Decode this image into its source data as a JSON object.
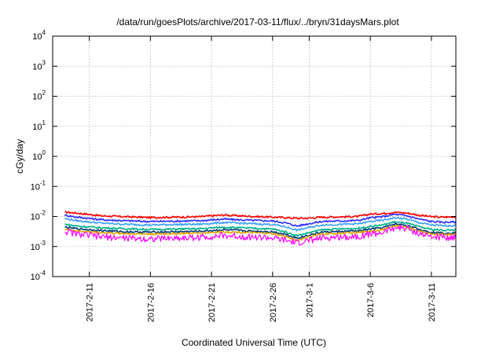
{
  "chart_data": {
    "type": "line",
    "title": "/data/run/goesPlots/archive/2017-03-11/flux/../bryn/31daysMars.plot",
    "xlabel": "Coordinated Universal Time (UTC)",
    "ylabel": "cGy/day",
    "yscale": "log",
    "ylim": [
      0.0001,
      10000
    ],
    "xlim_days": [
      "2017-2-08",
      "2017-3-13"
    ],
    "y_ticks": [
      {
        "base": "10",
        "exp": "-4",
        "value": 0.0001
      },
      {
        "base": "10",
        "exp": "-3",
        "value": 0.001
      },
      {
        "base": "10",
        "exp": "-2",
        "value": 0.01
      },
      {
        "base": "10",
        "exp": "-1",
        "value": 0.1
      },
      {
        "base": "10",
        "exp": "0",
        "value": 1
      },
      {
        "base": "10",
        "exp": "1",
        "value": 10
      },
      {
        "base": "10",
        "exp": "2",
        "value": 100
      },
      {
        "base": "10",
        "exp": "3",
        "value": 1000
      },
      {
        "base": "10",
        "exp": "4",
        "value": 10000
      }
    ],
    "x_ticks": [
      "2017-2-11",
      "2017-2-16",
      "2017-2-21",
      "2017-2-26",
      "2017-3-1",
      "2017-3-6",
      "2017-3-11"
    ],
    "grid": true,
    "legend": "none",
    "x": [
      "2017-2-09",
      "2017-2-10",
      "2017-2-12",
      "2017-2-14",
      "2017-2-16",
      "2017-2-18",
      "2017-2-20",
      "2017-2-22",
      "2017-2-24",
      "2017-2-26",
      "2017-2-27",
      "2017-2-28",
      "2017-3-1",
      "2017-3-2",
      "2017-3-4",
      "2017-3-5",
      "2017-3-6",
      "2017-3-7",
      "2017-3-8",
      "2017-3-9",
      "2017-3-10",
      "2017-3-11",
      "2017-3-12",
      "2017-3-13"
    ],
    "series": [
      {
        "color": "#ff0000",
        "values": [
          0.014,
          0.013,
          0.0105,
          0.0098,
          0.0092,
          0.0095,
          0.0098,
          0.0112,
          0.0102,
          0.0095,
          0.0092,
          0.0087,
          0.0088,
          0.0095,
          0.0098,
          0.01,
          0.012,
          0.0125,
          0.0138,
          0.013,
          0.011,
          0.0098,
          0.0095,
          0.0098
        ]
      },
      {
        "color": "#2b2bff",
        "values": [
          0.011,
          0.0095,
          0.0078,
          0.0072,
          0.0068,
          0.007,
          0.0072,
          0.0082,
          0.0075,
          0.0071,
          0.0062,
          0.0048,
          0.0058,
          0.0068,
          0.0072,
          0.0074,
          0.009,
          0.0098,
          0.0118,
          0.0105,
          0.0082,
          0.0068,
          0.0064,
          0.0066
        ]
      },
      {
        "color": "#3aa0ff",
        "values": [
          0.0085,
          0.0072,
          0.006,
          0.0055,
          0.0052,
          0.0054,
          0.0055,
          0.0063,
          0.0058,
          0.0054,
          0.0046,
          0.0035,
          0.0043,
          0.0052,
          0.0055,
          0.0057,
          0.0068,
          0.0075,
          0.009,
          0.0082,
          0.0062,
          0.0052,
          0.0049,
          0.005
        ]
      },
      {
        "color": "#00b08a",
        "values": [
          0.0055,
          0.0048,
          0.0042,
          0.0039,
          0.0037,
          0.0038,
          0.0039,
          0.0044,
          0.0041,
          0.0038,
          0.0031,
          0.0023,
          0.0029,
          0.0036,
          0.0039,
          0.004,
          0.0047,
          0.0052,
          0.0066,
          0.006,
          0.0045,
          0.0037,
          0.0035,
          0.0036
        ]
      },
      {
        "color": "#003a7a",
        "values": [
          0.0044,
          0.0039,
          0.0034,
          0.0031,
          0.003,
          0.0031,
          0.0032,
          0.0036,
          0.0033,
          0.0031,
          0.0026,
          0.0019,
          0.0024,
          0.003,
          0.0032,
          0.0033,
          0.0038,
          0.0042,
          0.0056,
          0.0051,
          0.0037,
          0.003,
          0.0028,
          0.0029
        ]
      },
      {
        "color": "#e0a000",
        "values": [
          0.0038,
          0.0033,
          0.0029,
          0.0027,
          0.0026,
          0.0027,
          0.0028,
          0.0031,
          0.0029,
          0.0027,
          0.0022,
          0.0016,
          0.0021,
          0.0026,
          0.0028,
          0.0029,
          0.0033,
          0.0036,
          0.0049,
          0.0045,
          0.0032,
          0.0026,
          0.0025,
          0.0026
        ]
      },
      {
        "color": "#ff00ff",
        "values": [
          0.0032,
          0.0026,
          0.0021,
          0.0019,
          0.0018,
          0.0019,
          0.002,
          0.0023,
          0.0021,
          0.0019,
          0.0016,
          0.0013,
          0.0016,
          0.0019,
          0.0021,
          0.0022,
          0.0026,
          0.0029,
          0.0042,
          0.004,
          0.0027,
          0.0021,
          0.002,
          0.0021
        ]
      }
    ]
  }
}
